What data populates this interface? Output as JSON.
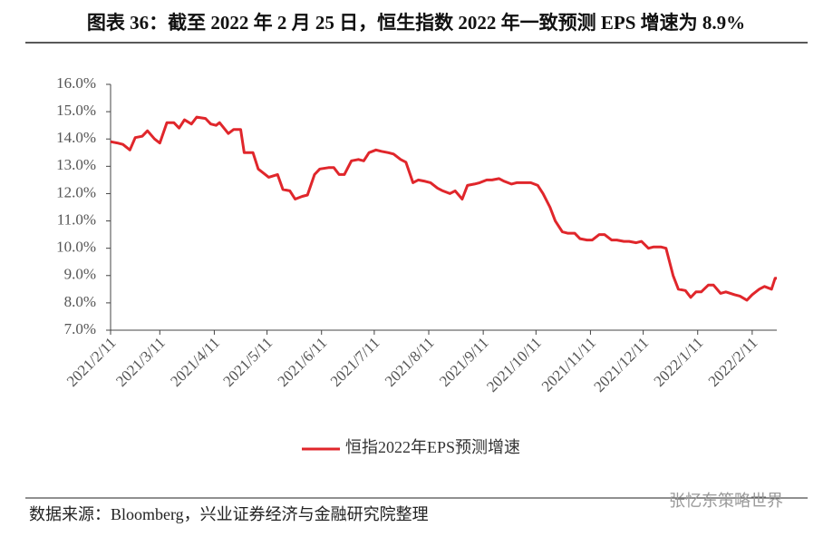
{
  "chart_data": {
    "type": "line",
    "title": "图表 36：截至 2022 年 2 月 25 日，恒生指数 2022 年一致预测 EPS 增速为 8.9%",
    "source": "数据来源：Bloomberg，兴业证券经济与金融研究院整理",
    "watermark": "张忆东策略世界",
    "x": [
      "2021/2/11",
      "2021/2/15",
      "2021/2/18",
      "2021/2/22",
      "2021/2/25",
      "2021/3/1",
      "2021/3/4",
      "2021/3/8",
      "2021/3/11",
      "2021/3/15",
      "2021/3/19",
      "2021/3/22",
      "2021/3/25",
      "2021/3/29",
      "2021/4/1",
      "2021/4/6",
      "2021/4/9",
      "2021/4/12",
      "2021/4/14",
      "2021/4/19",
      "2021/4/22",
      "2021/4/26",
      "2021/4/28",
      "2021/5/3",
      "2021/5/6",
      "2021/5/10",
      "2021/5/12",
      "2021/5/17",
      "2021/5/20",
      "2021/5/24",
      "2021/5/27",
      "2021/5/31",
      "2021/6/3",
      "2021/6/7",
      "2021/6/10",
      "2021/6/15",
      "2021/6/18",
      "2021/6/21",
      "2021/6/24",
      "2021/6/28",
      "2021/7/2",
      "2021/7/5",
      "2021/7/8",
      "2021/7/12",
      "2021/7/15",
      "2021/7/19",
      "2021/7/22",
      "2021/7/26",
      "2021/7/29",
      "2021/8/2",
      "2021/8/5",
      "2021/8/9",
      "2021/8/12",
      "2021/8/16",
      "2021/8/19",
      "2021/8/23",
      "2021/8/26",
      "2021/8/30",
      "2021/9/2",
      "2021/9/6",
      "2021/9/9",
      "2021/9/13",
      "2021/9/16",
      "2021/9/20",
      "2021/9/23",
      "2021/9/27",
      "2021/9/30",
      "2021/10/5",
      "2021/10/8",
      "2021/10/12",
      "2021/10/15",
      "2021/10/19",
      "2021/10/22",
      "2021/10/26",
      "2021/10/29",
      "2021/11/2",
      "2021/11/5",
      "2021/11/9",
      "2021/11/12",
      "2021/11/16",
      "2021/11/19",
      "2021/11/23",
      "2021/11/26",
      "2021/11/30",
      "2021/12/3",
      "2021/12/7",
      "2021/12/10",
      "2021/12/14",
      "2021/12/17",
      "2021/12/21",
      "2021/12/24",
      "2021/12/28",
      "2021/12/31",
      "2022/1/4",
      "2022/1/7",
      "2022/1/10",
      "2022/1/13",
      "2022/1/17",
      "2022/1/20",
      "2022/1/24",
      "2022/1/27",
      "2022/2/1",
      "2022/2/4",
      "2022/2/8",
      "2022/2/11",
      "2022/2/15",
      "2022/2/18",
      "2022/2/22",
      "2022/2/24",
      "2022/2/25"
    ],
    "series": [
      {
        "name": "恒指2022年EPS预测增速",
        "color": "#e0262b",
        "values": [
          13.9,
          13.85,
          13.8,
          13.6,
          14.05,
          14.1,
          14.3,
          14.0,
          13.85,
          14.6,
          14.6,
          14.4,
          14.7,
          14.55,
          14.8,
          14.75,
          14.55,
          14.5,
          14.6,
          14.2,
          14.35,
          14.35,
          13.5,
          13.5,
          12.9,
          12.7,
          12.6,
          12.7,
          12.15,
          12.1,
          11.8,
          11.9,
          11.95,
          12.7,
          12.9,
          12.95,
          12.95,
          12.7,
          12.7,
          13.2,
          13.25,
          13.2,
          13.5,
          13.6,
          13.55,
          13.5,
          13.45,
          13.25,
          13.15,
          12.4,
          12.5,
          12.45,
          12.4,
          12.2,
          12.1,
          12.0,
          12.1,
          11.8,
          12.3,
          12.35,
          12.4,
          12.5,
          12.5,
          12.55,
          12.45,
          12.35,
          12.4,
          12.4,
          12.4,
          12.3,
          12.0,
          11.5,
          11.0,
          10.6,
          10.55,
          10.55,
          10.35,
          10.3,
          10.3,
          10.5,
          10.5,
          10.3,
          10.3,
          10.25,
          10.25,
          10.2,
          10.25,
          10.0,
          10.05,
          10.05,
          10.0,
          9.0,
          8.5,
          8.45,
          8.2,
          8.4,
          8.4,
          8.65,
          8.65,
          8.35,
          8.4,
          8.3,
          8.25,
          8.1,
          8.3,
          8.5,
          8.6,
          8.5,
          8.9,
          8.9
        ]
      }
    ],
    "xlim": [
      "2021/2/11",
      "2022/2/25"
    ],
    "xticks": [
      "2021/2/11",
      "2021/3/11",
      "2021/4/11",
      "2021/5/11",
      "2021/6/11",
      "2021/7/11",
      "2021/8/11",
      "2021/9/11",
      "2021/10/11",
      "2021/11/11",
      "2021/12/11",
      "2022/1/11",
      "2022/2/11"
    ],
    "ylim": [
      7,
      16
    ],
    "yticks": [
      {
        "value": 7,
        "label": "7.0%"
      },
      {
        "value": 8,
        "label": "8.0%"
      },
      {
        "value": 9,
        "label": "9.0%"
      },
      {
        "value": 10,
        "label": "10.0%"
      },
      {
        "value": 11,
        "label": "11.0%"
      },
      {
        "value": 12,
        "label": "12.0%"
      },
      {
        "value": 13,
        "label": "13.0%"
      },
      {
        "value": 14,
        "label": "14.0%"
      },
      {
        "value": 15,
        "label": "15.0%"
      },
      {
        "value": 16,
        "label": "16.0%"
      }
    ],
    "grid": false,
    "legend": "bottom"
  }
}
